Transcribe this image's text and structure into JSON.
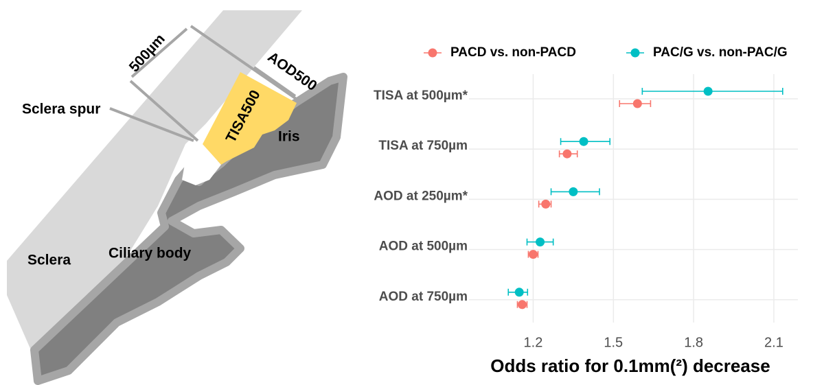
{
  "diagram": {
    "labels": [
      "500µm",
      "AOD500",
      "TISA500",
      "Sclera spur",
      "Iris",
      "Sclera",
      "Ciliary body"
    ]
  },
  "chart_data": {
    "type": "forest",
    "x_label": "Odds ratio for 0.1mm(²) decrease",
    "categories": [
      "TISA at 500µm*",
      "TISA at 750µm",
      "AOD at 250µm*",
      "AOD at 500µm",
      "AOD at 750µm"
    ],
    "series": [
      {
        "name": "PACD vs. non-PACD",
        "color": "#F8766D",
        "values": [
          1.59,
          1.327,
          1.247,
          1.2,
          1.159
        ],
        "lower": [
          1.523,
          1.298,
          1.221,
          1.182,
          1.141
        ],
        "upper": [
          1.639,
          1.365,
          1.267,
          1.218,
          1.177
        ]
      },
      {
        "name": "PAC/G vs. non-PAC/G",
        "color": "#00BFC4",
        "values": [
          1.854,
          1.389,
          1.35,
          1.226,
          1.148
        ],
        "lower": [
          1.608,
          1.303,
          1.267,
          1.177,
          1.107
        ],
        "upper": [
          2.133,
          1.487,
          1.448,
          1.275,
          1.179
        ]
      }
    ],
    "xlim": [
      0.96,
      2.19
    ],
    "xticks": [
      1.2,
      1.5,
      1.8,
      2.1
    ],
    "grid": true,
    "legend": "top"
  }
}
